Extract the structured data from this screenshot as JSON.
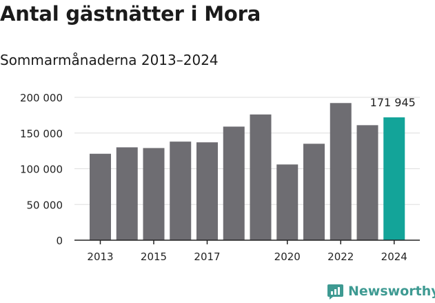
{
  "header": {
    "title": "Antal gästnätter i Mora",
    "subtitle": "Sommarmånaderna 2013–2024"
  },
  "logo": {
    "text": "Newsworthy",
    "icon": "bar-chart-speech-bubble-icon"
  },
  "colors": {
    "bar": "#6e6d72",
    "highlight": "#13a499",
    "grid": "#dddddd",
    "axis": "#222222",
    "logo": "#3e9a92"
  },
  "chart_data": {
    "type": "bar",
    "categories": [
      "2013",
      "2014",
      "2015",
      "2016",
      "2017",
      "2018",
      "2019",
      "2020",
      "2021",
      "2022",
      "2023",
      "2024"
    ],
    "values": [
      121000,
      130000,
      129000,
      138000,
      137000,
      159000,
      176000,
      106000,
      135000,
      192000,
      161000,
      171945
    ],
    "highlight_index": 11,
    "highlight_label": "171 945",
    "title": "Antal gästnätter i Mora",
    "subtitle": "Sommarmånaderna 2013–2024",
    "ylim": [
      0,
      200000
    ],
    "yticks": [
      0,
      50000,
      100000,
      150000,
      200000
    ],
    "ytick_labels": [
      "0",
      "50 000",
      "100 000",
      "150 000",
      "200 000"
    ],
    "xtick_labels": [
      "2013",
      "2015",
      "2017",
      "2020",
      "2022",
      "2024"
    ],
    "grid": true
  }
}
